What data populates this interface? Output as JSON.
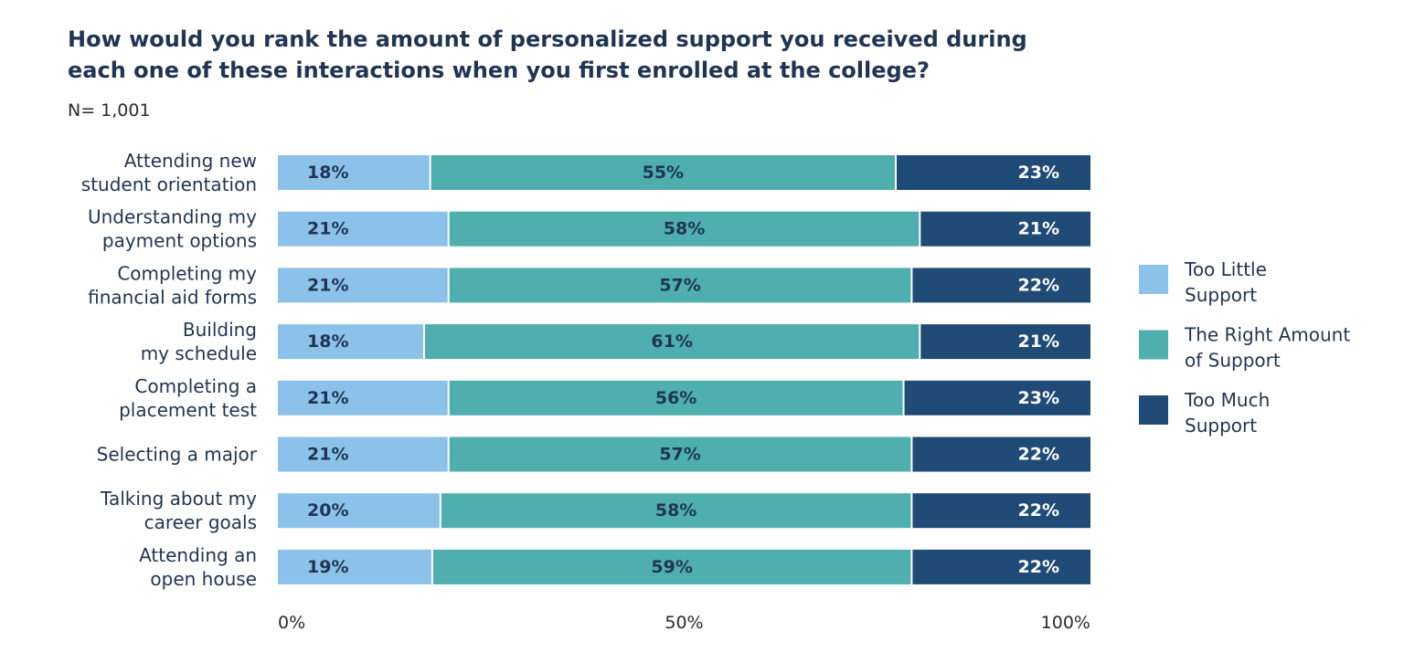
{
  "chart_data": {
    "type": "bar",
    "orientation": "horizontal",
    "stacked": true,
    "title": "How would you rank the amount of personalized support you received during each one of these interactions when you first enrolled at the college?",
    "subtitle": "N= 1,001",
    "categories": [
      [
        "Attending new",
        "student orientation"
      ],
      [
        "Understanding my",
        "payment options"
      ],
      [
        "Completing my",
        "financial aid forms"
      ],
      [
        "Building",
        "my schedule"
      ],
      [
        "Completing a",
        "placement test"
      ],
      [
        "Selecting a major"
      ],
      [
        "Talking about my",
        "career goals"
      ],
      [
        "Attending an",
        "open house"
      ]
    ],
    "series": [
      {
        "name": "Too Little Support",
        "legend_lines": [
          "Too Little",
          "Support"
        ],
        "color": "#8cc2e9",
        "label_color": "#1f3553",
        "values": [
          18,
          21,
          21,
          18,
          21,
          21,
          20,
          19
        ],
        "labels": [
          "18%",
          "21%",
          "21%",
          "18%",
          "21%",
          "21%",
          "20%",
          "19%"
        ]
      },
      {
        "name": "The Right Amount of Support",
        "legend_lines": [
          "The Right Amount",
          "of Support"
        ],
        "color": "#4eafae",
        "label_color": "#1f3553",
        "values": [
          55,
          58,
          57,
          61,
          56,
          57,
          58,
          59
        ],
        "labels": [
          "55%",
          "58%",
          "57%",
          "61%",
          "56%",
          "57%",
          "58%",
          "59%"
        ]
      },
      {
        "name": "Too Much Support",
        "legend_lines": [
          "Too Much",
          "Support"
        ],
        "color": "#204b76",
        "label_color": "#ffffff",
        "values": [
          23,
          21,
          22,
          21,
          23,
          22,
          22,
          22
        ],
        "labels": [
          "23%",
          "21%",
          "22%",
          "21%",
          "23%",
          "22%",
          "22%",
          "22%"
        ]
      }
    ],
    "xlim": [
      0,
      100
    ],
    "xticks": [
      {
        "value": 0,
        "label": "0%"
      },
      {
        "value": 50,
        "label": "50%"
      },
      {
        "value": 100,
        "label": "100%"
      }
    ],
    "grid": false,
    "legend_position": "right"
  }
}
